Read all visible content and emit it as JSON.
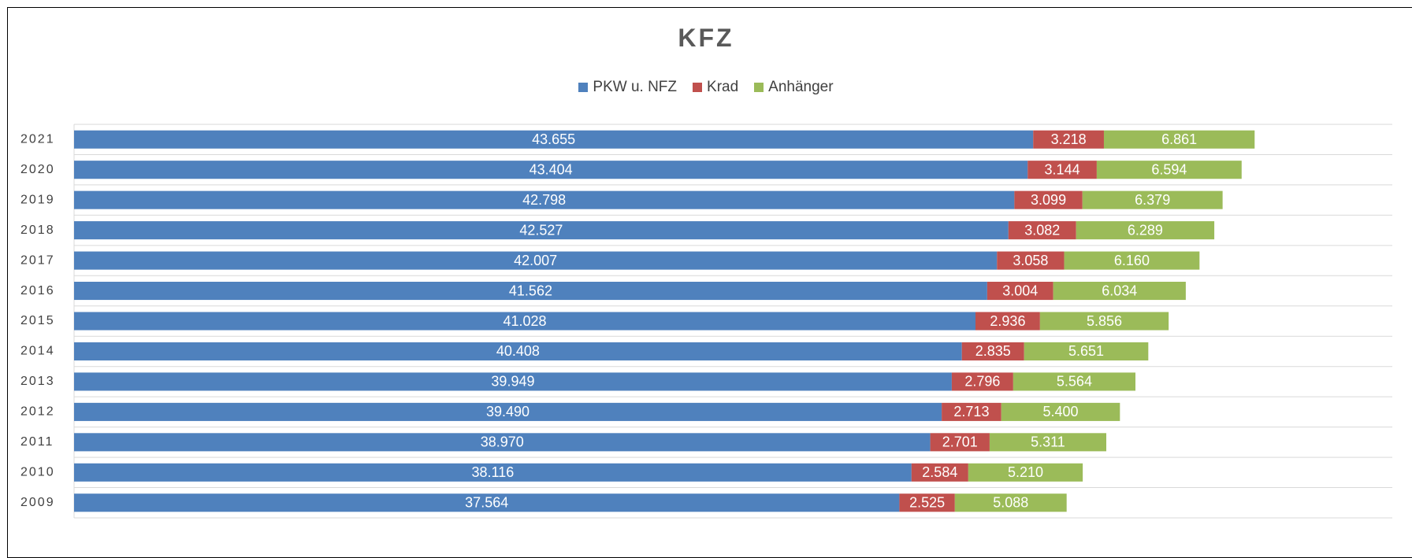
{
  "chart_data": {
    "type": "stacked_barh",
    "title": "KFZ",
    "categories": [
      "2021",
      "2020",
      "2019",
      "2018",
      "2017",
      "2016",
      "2015",
      "2014",
      "2013",
      "2012",
      "2011",
      "2010",
      "2009"
    ],
    "series": [
      {
        "name": "PKW u. NFZ",
        "color": "#4f81bd",
        "values": [
          43655,
          43404,
          42798,
          42527,
          42007,
          41562,
          41028,
          40408,
          39949,
          39490,
          38970,
          38116,
          37564
        ],
        "value_labels": [
          "43.655",
          "43.404",
          "42.798",
          "42.527",
          "42.007",
          "41.562",
          "41.028",
          "40.408",
          "39.949",
          "39.490",
          "38.970",
          "38.116",
          "37.564"
        ]
      },
      {
        "name": "Krad",
        "color": "#c0504d",
        "values": [
          3218,
          3144,
          3099,
          3082,
          3058,
          3004,
          2936,
          2835,
          2796,
          2713,
          2701,
          2584,
          2525
        ],
        "value_labels": [
          "3.218",
          "3.144",
          "3.099",
          "3.082",
          "3.058",
          "3.004",
          "2.936",
          "2.835",
          "2.796",
          "2.713",
          "2.701",
          "2.584",
          "2.525"
        ]
      },
      {
        "name": "Anhänger",
        "color": "#9bbb59",
        "values": [
          6861,
          6594,
          6379,
          6289,
          6160,
          6034,
          5856,
          5651,
          5564,
          5400,
          5311,
          5210,
          5088
        ],
        "value_labels": [
          "6.861",
          "6.594",
          "6.379",
          "6.289",
          "6.160",
          "6.034",
          "5.856",
          "5.651",
          "5.564",
          "5.400",
          "5.311",
          "5.210",
          "5.088"
        ]
      }
    ],
    "xlim": [
      0,
      60000
    ]
  }
}
